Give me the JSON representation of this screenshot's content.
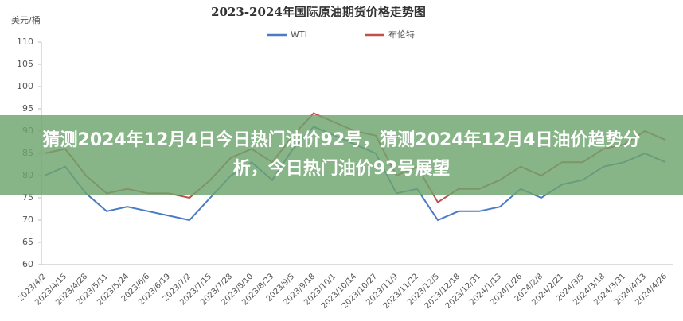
{
  "chart_data": {
    "type": "line",
    "title": "2023-2024年国际原油期货价格走势图",
    "ylabel": "美元/桶",
    "categories": [
      "2023/4/2",
      "2023/4/15",
      "2023/4/28",
      "2023/5/11",
      "2023/5/24",
      "2023/6/6",
      "2023/6/19",
      "2023/7/2",
      "2023/7/15",
      "2023/7/28",
      "2023/8/10",
      "2023/8/23",
      "2023/9/5",
      "2023/9/18",
      "2023/10/1",
      "2023/10/14",
      "2023/10/27",
      "2023/11/9",
      "2023/11/22",
      "2023/12/5",
      "2023/12/18",
      "2023/12/31",
      "2024/1/13",
      "2024/1/26",
      "2024/2/8",
      "2024/2/21",
      "2024/3/5",
      "2024/3/18",
      "2024/3/31",
      "2024/4/13",
      "2024/4/26"
    ],
    "series": [
      {
        "name": "WTI",
        "color": "#4a7bc4",
        "values": [
          80,
          82,
          76,
          72,
          73,
          72,
          71,
          70,
          75,
          80,
          83,
          79,
          86,
          91,
          89,
          87,
          85,
          76,
          77,
          70,
          72,
          72,
          73,
          77,
          75,
          78,
          79,
          82,
          83,
          85,
          83
        ]
      },
      {
        "name": "布伦特",
        "color": "#c0504d",
        "values": [
          85,
          86,
          80,
          76,
          77,
          76,
          76,
          75,
          79,
          84,
          86,
          83,
          89,
          94,
          92,
          90,
          89,
          80,
          82,
          74,
          77,
          77,
          79,
          82,
          80,
          83,
          83,
          86,
          87,
          90,
          88
        ]
      }
    ],
    "ylim": [
      60,
      110
    ],
    "yticks": [
      60,
      65,
      70,
      75,
      80,
      85,
      90,
      95,
      100,
      105,
      110
    ],
    "grid": false,
    "legend": "top"
  },
  "overlay": {
    "headline": "猜测2024年12月4日今日热门油价92号，猜测2024年12月4日油价趋势分析，今日热门油价92号展望"
  }
}
